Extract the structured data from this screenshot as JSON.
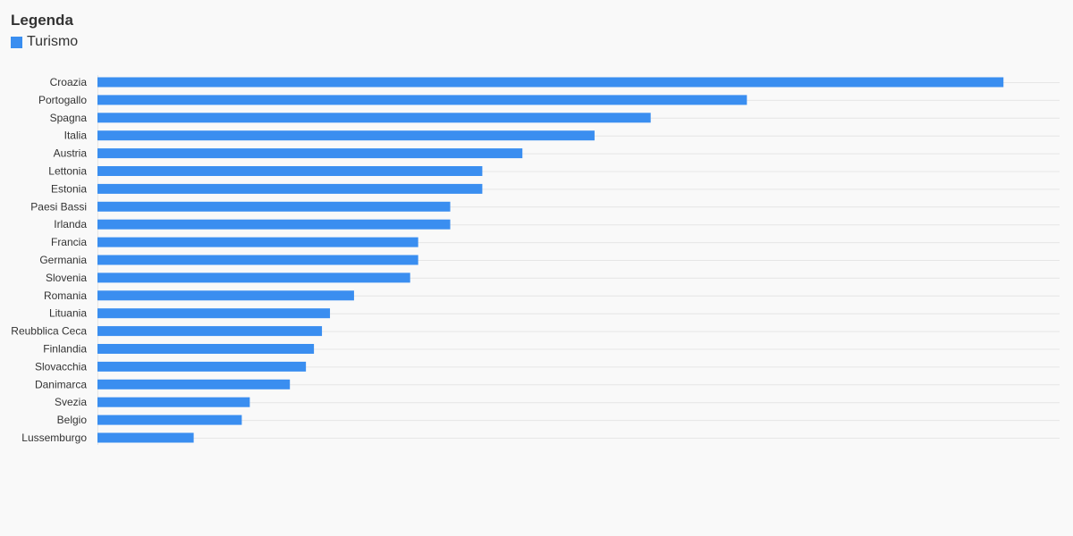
{
  "legend": {
    "title": "Legenda",
    "items": [
      {
        "label": "Turismo",
        "color": "#3a8ef0"
      }
    ]
  },
  "chart_data": {
    "type": "bar",
    "orientation": "horizontal",
    "title": "",
    "xlabel": "",
    "ylabel": "",
    "grid": true,
    "legend_position": "top-left",
    "categories": [
      "Croazia",
      "Portogallo",
      "Spagna",
      "Italia",
      "Austria",
      "Lettonia",
      "Estonia",
      "Paesi Bassi",
      "Irlanda",
      "Francia",
      "Germania",
      "Slovenia",
      "Romania",
      "Lituania",
      "Reubblica Ceca",
      "Finlandia",
      "Slovacchia",
      "Danimarca",
      "Svezia",
      "Belgio",
      "Lussemburgo"
    ],
    "series": [
      {
        "name": "Turismo",
        "color": "#3a8ef0",
        "values": [
          11.3,
          8.1,
          6.9,
          6.2,
          5.3,
          4.8,
          4.8,
          4.4,
          4.4,
          4.0,
          4.0,
          3.9,
          3.2,
          2.9,
          2.8,
          2.7,
          2.6,
          2.4,
          1.9,
          1.8,
          1.2
        ]
      }
    ],
    "xlim": [
      0,
      12
    ]
  }
}
